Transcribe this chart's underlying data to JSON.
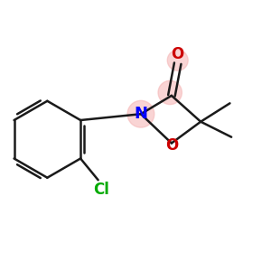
{
  "bg_color": "#ffffff",
  "bond_color": "#1a1a1a",
  "bond_lw": 1.8,
  "highlight_color": "#f5b8b8",
  "highlight_alpha": 0.6,
  "atom_colors": {
    "N": "#0000ff",
    "O": "#cc0000",
    "Cl": "#00aa00"
  },
  "atom_fontsizes": {
    "N": 13,
    "O": 12,
    "Cl": 12
  },
  "figsize": [
    3.0,
    3.0
  ],
  "dpi": 100,
  "xlim": [
    -0.5,
    3.0
  ],
  "ylim": [
    -1.6,
    1.6
  ]
}
